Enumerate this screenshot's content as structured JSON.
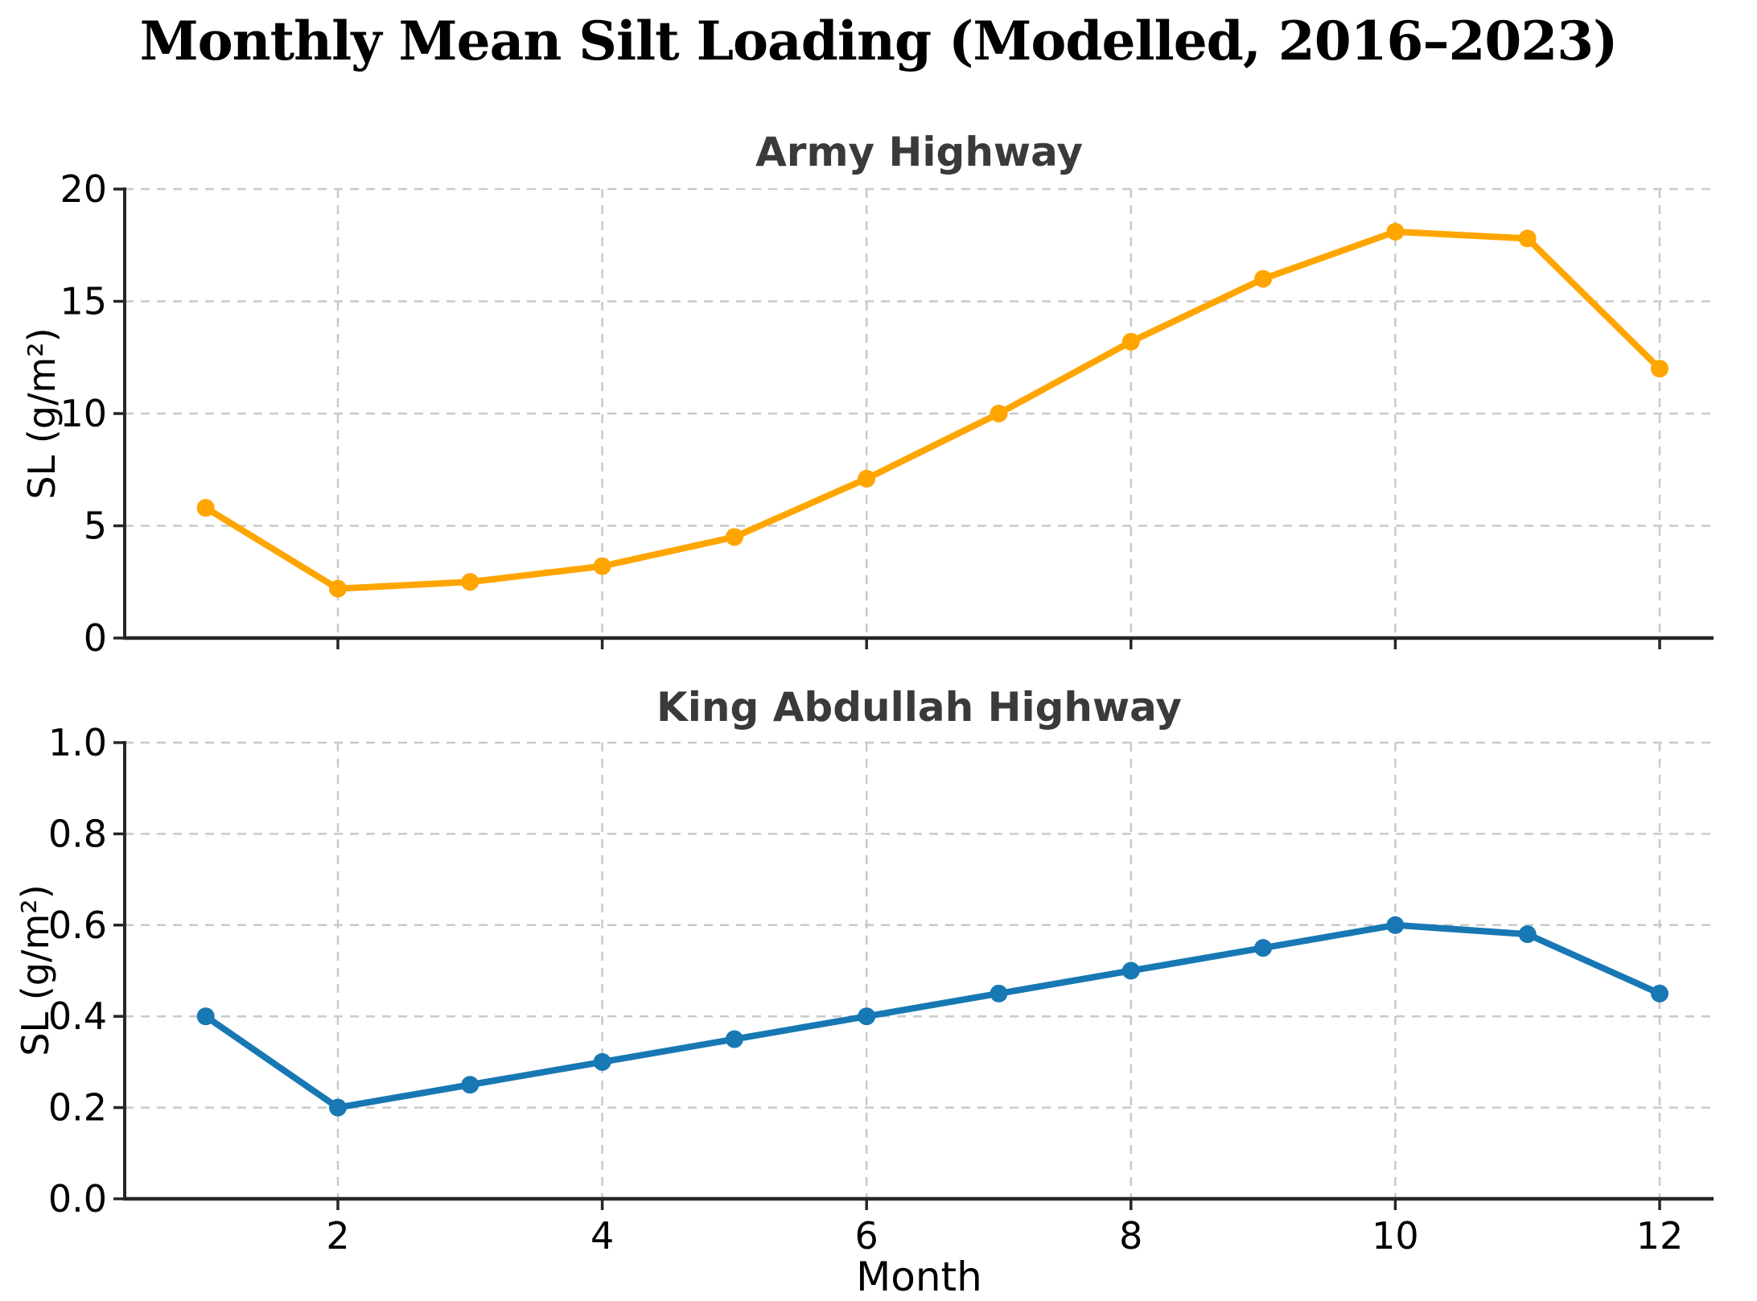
{
  "figure": {
    "title": "Monthly Mean Silt Loading (Modelled, 2016–2023)"
  },
  "chart_data": [
    {
      "type": "line",
      "title": "Army Highway",
      "x": [
        1,
        2,
        3,
        4,
        5,
        6,
        7,
        8,
        9,
        10,
        11,
        12
      ],
      "series": [
        {
          "name": "Army Highway",
          "color": "#FFA500",
          "values": [
            5.8,
            2.2,
            2.5,
            3.2,
            4.5,
            7.1,
            10.0,
            13.2,
            16.0,
            18.1,
            17.8,
            12.0
          ]
        }
      ],
      "xlabel": "",
      "ylabel": "SL (g/m²)",
      "ylim": [
        0,
        20
      ],
      "yticks": [
        0,
        5,
        10,
        15,
        20
      ],
      "ytick_labels": [
        "0",
        "5",
        "10",
        "15",
        "20"
      ],
      "xticks": [
        2,
        4,
        6,
        8,
        10,
        12
      ],
      "xtick_labels": [
        "2",
        "4",
        "6",
        "8",
        "10",
        "12"
      ],
      "show_xtick_labels": false,
      "grid": true,
      "legend": "none",
      "marker": "circle"
    },
    {
      "type": "line",
      "title": "King Abdullah Highway",
      "x": [
        1,
        2,
        3,
        4,
        5,
        6,
        7,
        8,
        9,
        10,
        11,
        12
      ],
      "series": [
        {
          "name": "King Abdullah Highway",
          "color": "#1778B4",
          "values": [
            0.4,
            0.2,
            0.25,
            0.3,
            0.35,
            0.4,
            0.45,
            0.5,
            0.55,
            0.6,
            0.58,
            0.45
          ]
        }
      ],
      "xlabel": "Month",
      "ylabel": "SL (g/m²)",
      "ylim": [
        0,
        1.0
      ],
      "yticks": [
        0,
        0.2,
        0.4,
        0.6,
        0.8,
        1.0
      ],
      "ytick_labels": [
        "0.0",
        "0.2",
        "0.4",
        "0.6",
        "0.8",
        "1.0"
      ],
      "xticks": [
        2,
        4,
        6,
        8,
        10,
        12
      ],
      "xtick_labels": [
        "2",
        "4",
        "6",
        "8",
        "10",
        "12"
      ],
      "show_xtick_labels": true,
      "grid": true,
      "legend": "none",
      "marker": "circle"
    }
  ],
  "style": {
    "grid_color": "#c9c9c9",
    "spine_color": "#262626",
    "tick_color": "#262626",
    "text_color": "#000000",
    "subplot_title_color": "#3a3a3a",
    "background": "#ffffff"
  }
}
